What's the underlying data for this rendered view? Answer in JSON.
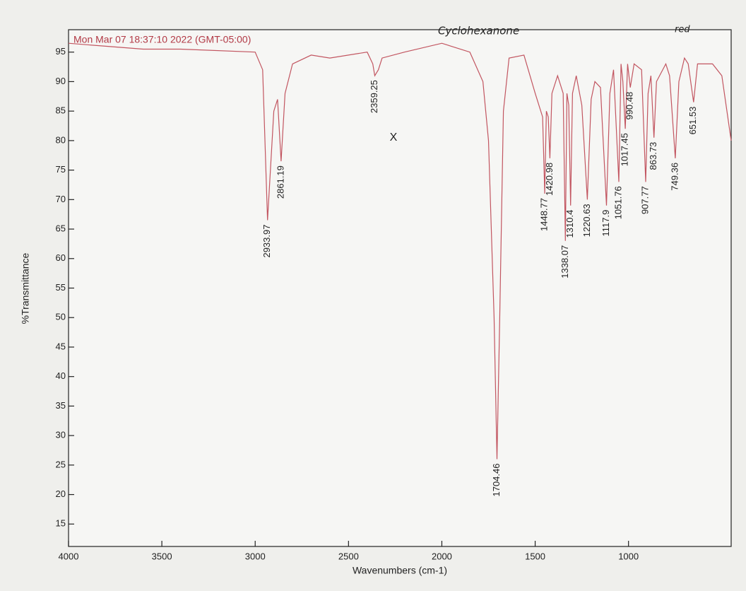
{
  "chart_data": {
    "type": "line",
    "timestamp": "Mon Mar 07 18:37:10 2022 (GMT-05:00)",
    "title": "Cyclohexanone",
    "note": "red",
    "mark": "X",
    "x_label": "Wavenumbers (cm-1)",
    "y_label": "%Transmittance",
    "xlim": [
      4000,
      450
    ],
    "ylim": [
      11.2,
      98.8
    ],
    "xticks": [
      4000,
      3500,
      3000,
      2500,
      2000,
      1500,
      1000
    ],
    "yticks": [
      15,
      20,
      25,
      30,
      35,
      40,
      45,
      50,
      55,
      60,
      65,
      70,
      75,
      80,
      85,
      90,
      95
    ],
    "x": [
      4000,
      3800,
      3600,
      3400,
      3000,
      2960,
      2933.97,
      2900,
      2880,
      2861.19,
      2840,
      2800,
      2700,
      2600,
      2400,
      2370,
      2359.25,
      2340,
      2320,
      2200,
      2000,
      1850,
      1780,
      1750,
      1720,
      1704.46,
      1690,
      1670,
      1640,
      1560,
      1500,
      1460,
      1448.77,
      1440,
      1430,
      1420.98,
      1410,
      1380,
      1350,
      1338.07,
      1330,
      1320,
      1310.4,
      1300,
      1280,
      1250,
      1220.63,
      1200,
      1180,
      1150,
      1117.9,
      1100,
      1080,
      1051.76,
      1040,
      1030,
      1017.45,
      1005,
      990.48,
      970,
      930,
      907.77,
      895,
      880,
      863.73,
      850,
      800,
      780,
      749.36,
      730,
      700,
      680,
      651.53,
      630,
      550,
      500,
      450
    ],
    "series": [
      {
        "name": "Cyclohexanone",
        "color": "#c25560",
        "values": [
          96.5,
          96,
          95.5,
          95.5,
          95,
          92,
          66.5,
          85,
          87,
          76.5,
          88,
          93,
          94.5,
          94,
          95,
          93,
          91,
          92,
          94,
          95,
          96.5,
          95,
          90,
          80,
          50,
          26,
          50,
          85,
          94,
          94.5,
          88,
          84,
          71,
          85,
          84,
          77,
          88,
          91,
          88,
          63,
          88,
          86,
          69,
          88,
          91,
          86,
          70,
          87,
          90,
          89,
          69,
          88,
          92,
          73,
          93,
          90,
          82,
          93,
          89,
          93,
          92,
          73,
          88,
          91,
          80.5,
          90,
          93,
          91,
          77,
          90,
          94,
          93,
          86.5,
          93,
          93,
          91,
          80
        ]
      }
    ],
    "peaks": [
      {
        "x": 2933.97,
        "y": 66.5
      },
      {
        "x": 2861.19,
        "y": 76.5
      },
      {
        "x": 2359.25,
        "y": 91
      },
      {
        "x": 1704.46,
        "y": 26
      },
      {
        "x": 1448.77,
        "y": 71
      },
      {
        "x": 1420.98,
        "y": 77
      },
      {
        "x": 1338.07,
        "y": 63
      },
      {
        "x": 1310.4,
        "y": 69
      },
      {
        "x": 1220.63,
        "y": 70
      },
      {
        "x": 1117.9,
        "y": 69
      },
      {
        "x": 1051.76,
        "y": 73
      },
      {
        "x": 1017.45,
        "y": 82
      },
      {
        "x": 990.48,
        "y": 89
      },
      {
        "x": 907.77,
        "y": 73
      },
      {
        "x": 863.73,
        "y": 80.5
      },
      {
        "x": 749.36,
        "y": 77
      },
      {
        "x": 651.53,
        "y": 86.5
      }
    ]
  }
}
